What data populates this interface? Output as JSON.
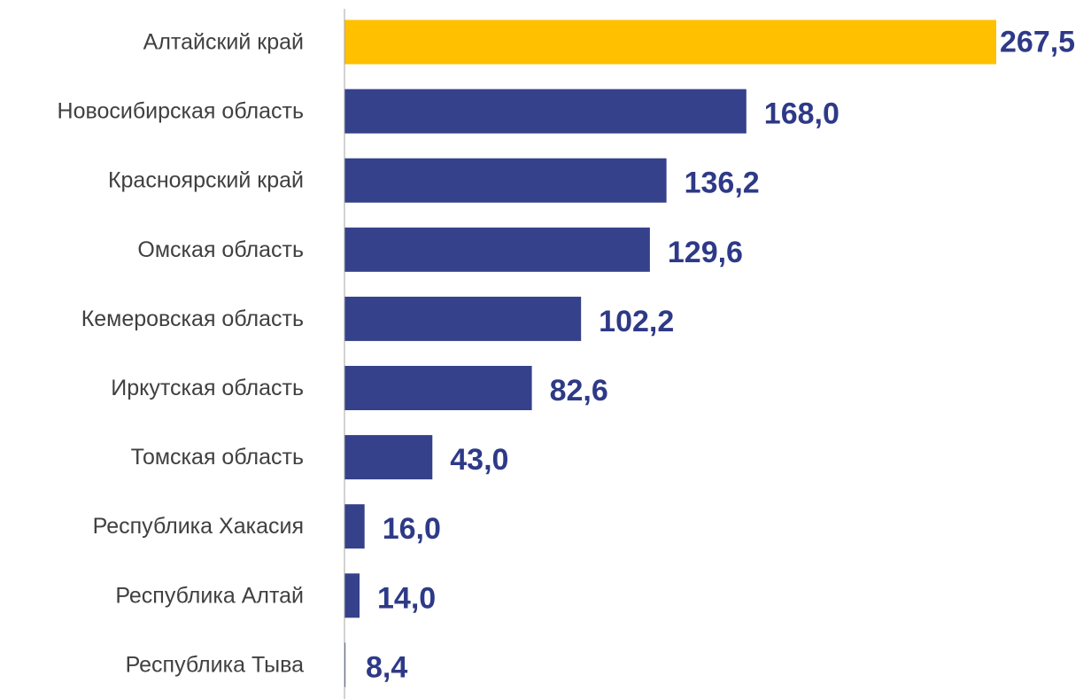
{
  "chart_data": {
    "type": "bar",
    "orientation": "horizontal",
    "categories": [
      "Алтайский край",
      "Новосибирская область",
      "Красноярский край",
      "Омская область",
      "Кемеровская область",
      "Иркутская область",
      "Томская область",
      "Республика Хакасия",
      "Республика Алтай",
      "Республика Тыва"
    ],
    "values": [
      267.5,
      168.0,
      136.2,
      129.6,
      102.2,
      82.6,
      43.0,
      16.0,
      14.0,
      8.4
    ],
    "value_labels": [
      "267,5",
      "168,0",
      "136,2",
      "129,6",
      "102,2",
      "82,6",
      "43,0",
      "16,0",
      "14,0",
      "8,4"
    ],
    "highlight_index": 0,
    "xlim": [
      8,
      267.5
    ],
    "grid": false,
    "legend": "none",
    "colors": {
      "bar": "#35418a",
      "highlight": "#ffc000",
      "value_text": "#2e3a87",
      "category_text": "#404040",
      "axis": "#a6a6a6"
    }
  }
}
